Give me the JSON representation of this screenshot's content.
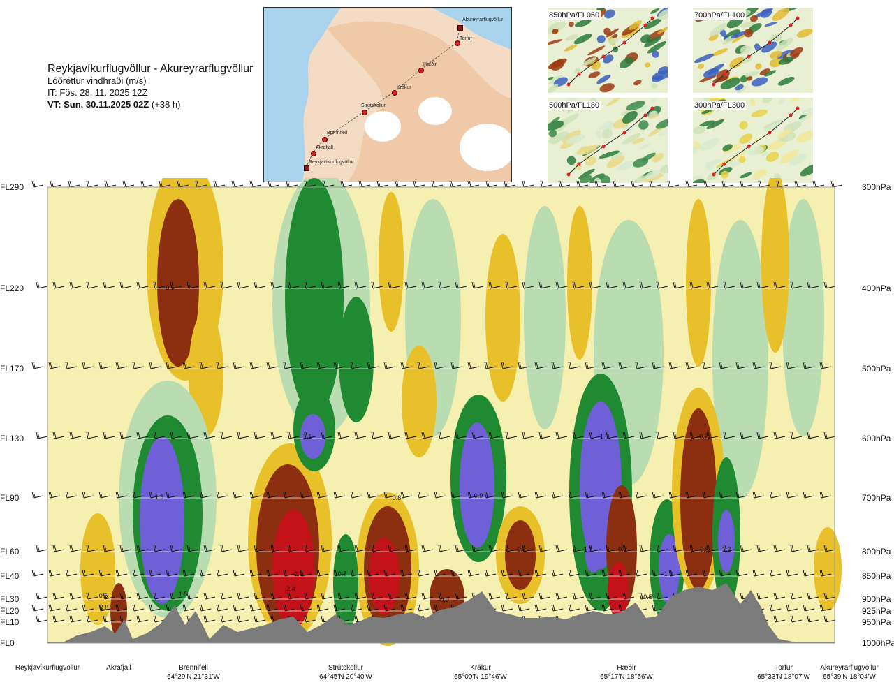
{
  "header": {
    "route": "Reykjavíkurflugvöllur - Akureyrarflugvöllur",
    "parameter": "Lóðréttur vindhraði (m/s)",
    "issue_time": "IT: Fös. 28. 11. 2025 12Z",
    "valid_time_bold": "VT: Sun. 30.11.2025 02Z",
    "valid_time_suffix": "(+38 h)"
  },
  "route_map": {
    "waypoints": [
      "Akureyrarflugvöllur",
      "Torfur",
      "Hæðir",
      "Krákur",
      "Strútskollur",
      "Brennifell",
      "Akrafjall",
      "Reykjavíkurflugvöllur"
    ]
  },
  "mini_maps": [
    "850hPa/FL050",
    "700hPa/FL100",
    "500hPa/FL180",
    "300hPa/FL300"
  ],
  "colors": {
    "strong_down": "#c4121a",
    "down": "#8b2f10",
    "weak_down": "#e8c02a",
    "neutral": "#f6f0b0",
    "weak_up": "#b9dcb0",
    "up": "#1f8a32",
    "strong_up": "#7060d8",
    "terrain": "#7a7a7a"
  },
  "levels": [
    {
      "fl": "FL290",
      "hpa": "300hPa"
    },
    {
      "fl": "FL220",
      "hpa": "400hPa"
    },
    {
      "fl": "FL170",
      "hpa": "500hPa"
    },
    {
      "fl": "FL130",
      "hpa": "600hPa"
    },
    {
      "fl": "FL90",
      "hpa": "700hPa"
    },
    {
      "fl": "FL60",
      "hpa": "800hPa"
    },
    {
      "fl": "FL40",
      "hpa": "850hPa"
    },
    {
      "fl": "FL30",
      "hpa": "900hPa"
    },
    {
      "fl": "FL20",
      "hpa": "925hPa"
    },
    {
      "fl": "FL10",
      "hpa": "950hPa"
    },
    {
      "fl": "FL0",
      "hpa": "1000hPa"
    }
  ],
  "locations": [
    {
      "name": "Reykjavíkurflugvöllur",
      "coord": ""
    },
    {
      "name": "Akrafjall",
      "coord": ""
    },
    {
      "name": "Brennifell",
      "coord": "64°29'N 21°31'W"
    },
    {
      "name": "Strútskollur",
      "coord": "64°45'N 20°40'W"
    },
    {
      "name": "Krákur",
      "coord": "65°00'N 19°46'W"
    },
    {
      "name": "Hæðir",
      "coord": "65°17'N 18°56'W"
    },
    {
      "name": "Torfur",
      "coord": "65°33'N 18°07'W"
    },
    {
      "name": "Akureyrarflugvöllur",
      "coord": "65°39'N 18°04'W"
    }
  ],
  "chart_data": {
    "type": "heatmap",
    "title": "Lóðréttur vindhraði (m/s)",
    "x_axis": "Reykjavíkurflugvöllur → Akureyrarflugvöllur",
    "y_axis_left": [
      "FL0",
      "FL10",
      "FL20",
      "FL30",
      "FL40",
      "FL60",
      "FL90",
      "FL130",
      "FL170",
      "FL220",
      "FL290"
    ],
    "y_axis_right": [
      "1000hPa",
      "950hPa",
      "925hPa",
      "900hPa",
      "850hPa",
      "800hPa",
      "700hPa",
      "600hPa",
      "500hPa",
      "400hPa",
      "300hPa"
    ],
    "cells": [
      {
        "location": "Brennifell",
        "level": "FL90",
        "value": 1.3,
        "label": "1.3"
      },
      {
        "location": "Brennifell",
        "level": "FL30",
        "value": 1.5,
        "label": "1.5"
      },
      {
        "location": "Akrafjall",
        "level": "FL30",
        "value": 0.6,
        "label": "0.6"
      },
      {
        "location": "Akrafjall",
        "level": "FL20",
        "value": 0.8,
        "label": "0.8"
      },
      {
        "location": "Brennifell",
        "level": "FL220",
        "value": -0.5,
        "label": "-0.5"
      },
      {
        "location": "Strútskollur",
        "level": "FL130",
        "value": 1.1,
        "label": "1.1"
      },
      {
        "location": "Strútskollur",
        "level": "FL30",
        "value": -2.4,
        "label": "-2.4"
      },
      {
        "location": "Strútskollur",
        "level": "FL40",
        "value": 0.7,
        "label": "0.7"
      },
      {
        "location": "Strútskollur",
        "level": "FL40",
        "value": -2.2,
        "label": "-2.2"
      },
      {
        "location": "Strútskollur",
        "level": "FL90",
        "value": 0.8,
        "label": "0.8"
      },
      {
        "location": "Krákur",
        "level": "FL30",
        "value": -0.9,
        "label": "-0.9"
      },
      {
        "location": "Krákur",
        "level": "FL90",
        "value": 0.9,
        "label": "0.9"
      },
      {
        "location": "Krákur",
        "level": "FL60",
        "value": -0.8,
        "label": "-0.8"
      },
      {
        "location": "Hæðir",
        "level": "FL130",
        "value": 1.0,
        "label": "1.0"
      },
      {
        "location": "Hæðir",
        "level": "FL60",
        "value": 1.1,
        "label": "1.1"
      },
      {
        "location": "Hæðir",
        "level": "FL60",
        "value": -0.7,
        "label": "-0.7"
      },
      {
        "location": "Hæðir",
        "level": "FL40",
        "value": 1.3,
        "label": "1.3"
      },
      {
        "location": "Hæðir",
        "level": "FL30",
        "value": -0.5,
        "label": "-0.5"
      },
      {
        "location": "Hæðir",
        "level": "FL130",
        "value": -0.7,
        "label": "-0.7"
      },
      {
        "location": "Hæðir",
        "level": "FL60",
        "value": -0.8,
        "label": "-0.8"
      },
      {
        "location": "Hæðir",
        "level": "FL60",
        "value": 1.2,
        "label": "1.2"
      }
    ],
    "legend": "none",
    "grid": true
  }
}
